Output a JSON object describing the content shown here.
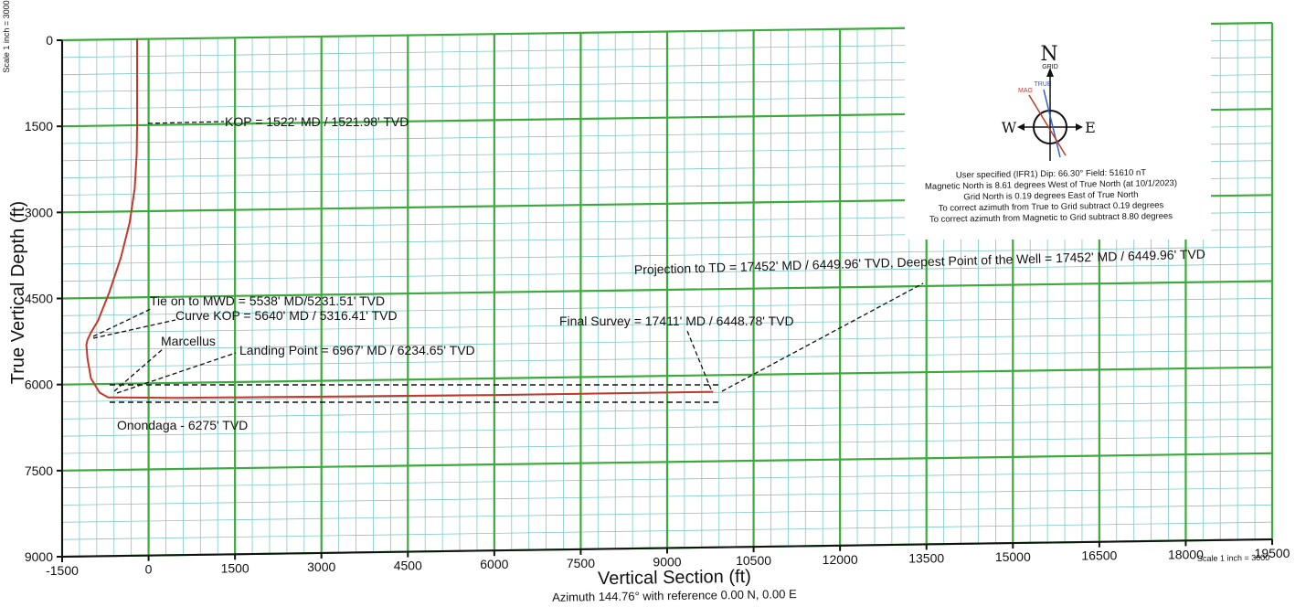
{
  "chart_data": {
    "type": "line",
    "xlabel": "Vertical Section (ft)",
    "ylabel": "True Vertical Depth (ft)",
    "subtitle": "Azimuth 144.76° with reference 0.00 N, 0.00 E",
    "scale_left": "Scale 1 inch = 3000",
    "scale_bottom": "Scale 1 inch = 3000",
    "xlim": [
      -1500,
      19500
    ],
    "ylim": [
      0,
      9000
    ],
    "x_ticks": [
      "-1500",
      "0",
      "1500",
      "3000",
      "4500",
      "6000",
      "7500",
      "9000",
      "10500",
      "12000",
      "13500",
      "15000",
      "16500",
      "18000",
      "19500"
    ],
    "y_ticks": [
      "0",
      "1500",
      "3000",
      "4500",
      "6000",
      "7500",
      "9000"
    ],
    "series": [
      {
        "color": "#c0392b",
        "x": [
          -200,
          -200,
          -200,
          -205,
          -240,
          -330,
          -480,
          -680,
          -880,
          -1000,
          -1060,
          -1080,
          -1060,
          -1000,
          -850,
          -700,
          500,
          2000,
          4000,
          6000,
          8000,
          9800
        ],
        "y": [
          0,
          1000,
          1522,
          2000,
          2600,
          3200,
          3800,
          4400,
          4900,
          5100,
          5231,
          5316,
          5550,
          5900,
          6150,
          6235,
          6260,
          6270,
          6280,
          6290,
          6290,
          6290
        ]
      }
    ],
    "annotations": [
      {
        "label": "KOP = 1522' MD / 1521.98' TVD",
        "x": 1100,
        "y": 1520
      },
      {
        "label": "Tie on to MWD = 5538' MD/5231.51' TVD",
        "x": -150,
        "y": 4760
      },
      {
        "label": "Curve KOP = 5640' MD / 5316.41' TVD",
        "x": 100,
        "y": 5050
      },
      {
        "label": "Marcellus",
        "x": -70,
        "y": 5500
      },
      {
        "label": "Landing Point = 6967' MD / 6234.65' TVD",
        "x": 1400,
        "y": 5650
      },
      {
        "label": "Final Survey = 17411' MD / 6448.78' TVD",
        "x": 7300,
        "y": 5150
      },
      {
        "label": "Projection to TD = 17452' MD / 6449.96' TVD, Deepest Point of the Well = 17452' MD / 6449.96' TVD",
        "x": 9800,
        "y": 4200
      },
      {
        "label": "Onondaga - 6275' TVD",
        "x": -200,
        "y": 6900
      }
    ],
    "grid": true
  },
  "compass": {
    "n_label": "N",
    "grid_label": "GRID",
    "true_label": "TRUE",
    "mag_label": "MAG",
    "w_label": "W",
    "e_label": "E",
    "info_lines": [
      "User specified (IFR1) Dip: 66.30°  Field: 51610 nT",
      "Magnetic North is 8.61 degrees West of True North (at 10/1/2023)",
      "Grid North is 0.19 degrees East of True North",
      "To correct azimuth from True to Grid subtract 0.19 degrees",
      "To correct azimuth from Magnetic to Grid subtract 8.80 degrees"
    ]
  },
  "colors": {
    "major_grid": "#3daa3d",
    "minor_grid": "#7ec8c8",
    "well_path": "#c0392b",
    "axis": "#111111"
  }
}
